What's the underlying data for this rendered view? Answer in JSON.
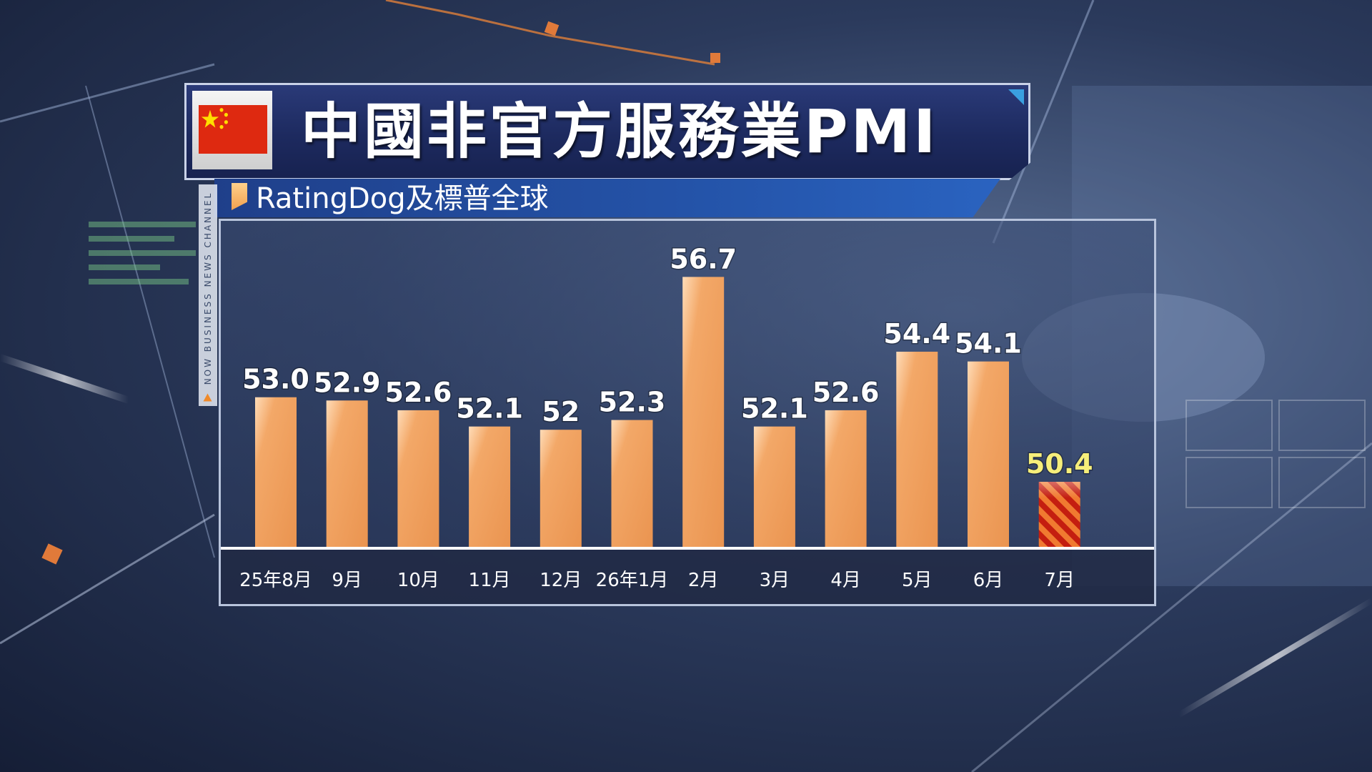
{
  "title": "中國非官方服務業PMI",
  "source": "RatingDog及標普全球",
  "channel": "NOW BUSINESS NEWS CHANNEL",
  "colors": {
    "bar": "#f0a060",
    "bar_highlight": "#ffd9b0",
    "last_bar_stripe_dark": "#c41e10",
    "last_bar_stripe_light": "#f07a30",
    "value_label": "#ffffff",
    "last_value_label": "#f6ee7a",
    "axis_label": "#ffffff",
    "title_bg": "#1d2a5f",
    "source_bg": "#2453a8"
  },
  "chart_data": {
    "type": "bar",
    "title": "中國非官方服務業PMI",
    "subtitle": "RatingDog及標普全球",
    "categories": [
      "25年8月",
      "9月",
      "10月",
      "11月",
      "12月",
      "26年1月",
      "2月",
      "3月",
      "4月",
      "5月",
      "6月",
      "7月"
    ],
    "values": [
      53.0,
      52.9,
      52.6,
      52.1,
      52,
      52.3,
      56.7,
      52.1,
      52.6,
      54.4,
      54.1,
      50.4
    ],
    "value_labels": [
      "53.0",
      "52.9",
      "52.6",
      "52.1",
      "52",
      "52.3",
      "56.7",
      "52.1",
      "52.6",
      "54.4",
      "54.1",
      "50.4"
    ],
    "highlight_index": 11,
    "ylim": [
      48.4,
      57.5
    ],
    "grid": false,
    "legend": "none"
  }
}
